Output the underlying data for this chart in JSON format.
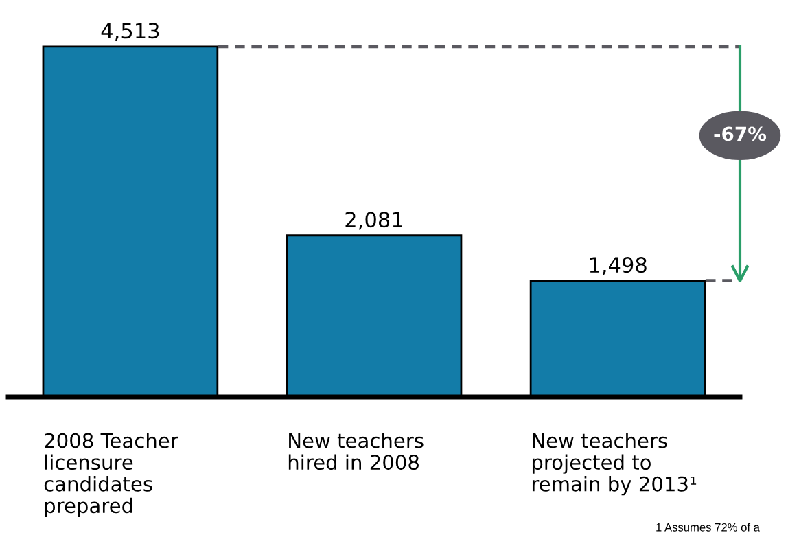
{
  "chart_data": {
    "type": "bar",
    "categories": [
      "2008 Teacher\nlicensure\ncandidates\nprepared",
      "New teachers\nhired in 2008",
      "New teachers\nprojected to\nremain by 2013¹"
    ],
    "values": [
      4513,
      2081,
      1498
    ],
    "color": "#137ca8",
    "value_labels": [
      "4,513",
      "2,081",
      "1,498"
    ],
    "tick_labels": "x",
    "annotations": [
      "-67%",
      "1 Assumes 72% of a"
    ]
  }
}
